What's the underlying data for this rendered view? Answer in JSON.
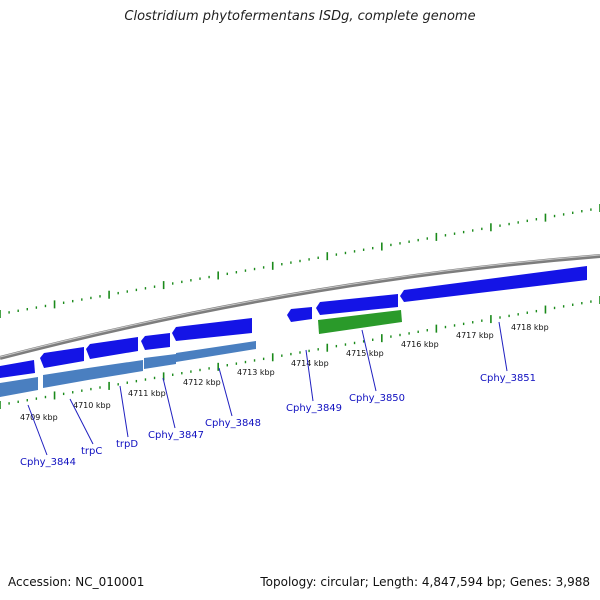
{
  "title": "Clostridium phytofermentans ISDg, complete genome",
  "accession": "Accession: NC_010001",
  "topology": "Topology: circular; Length: 4,847,594 bp; Genes: 3,988",
  "colors": {
    "backbone": "#8a8a8a",
    "gene_blue": "#1414e6",
    "gene_steel": "#4a7fc0",
    "gene_green": "#2a9a2a",
    "tick_green": "#1a7a1a",
    "label_blue": "#1010c0"
  },
  "kbp_labels": [
    "4709 kbp",
    "4710 kbp",
    "4711 kbp",
    "4712 kbp",
    "4713 kbp",
    "4714 kbp",
    "4715 kbp",
    "4716 kbp",
    "4717 kbp",
    "4718 kbp"
  ],
  "gene_labels": [
    "Cphy_3844",
    "trpC",
    "trpD",
    "Cphy_3847",
    "Cphy_3848",
    "Cphy_3849",
    "Cphy_3850",
    "Cphy_3851"
  ]
}
